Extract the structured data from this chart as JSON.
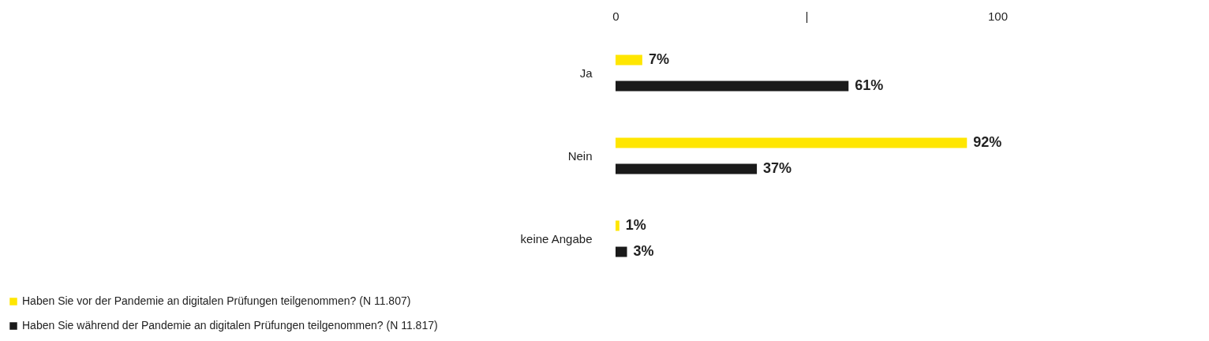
{
  "chart_data": {
    "type": "bar",
    "orientation": "horizontal",
    "categories": [
      "Ja",
      "Nein",
      "keine Angabe"
    ],
    "series": [
      {
        "name": "Haben Sie vor der Pandemie an digitalen Prüfungen teilgenommen? (N 11.807)",
        "color": "#ffe600",
        "values": [
          7,
          92,
          1
        ],
        "value_labels": [
          "7%",
          "92%",
          "1%"
        ]
      },
      {
        "name": "Haben Sie während der Pandemie an digitalen Prüfungen teilgenommen? (N 11.817)",
        "color": "#1a1a1a",
        "values": [
          61,
          37,
          3
        ],
        "value_labels": [
          "61%",
          "37%",
          "3%"
        ]
      }
    ],
    "xlim": [
      0,
      100
    ],
    "xticks": [
      0,
      {
        "value": 50,
        "label": "|"
      },
      100
    ],
    "grid": false,
    "legend": "bottom left"
  }
}
